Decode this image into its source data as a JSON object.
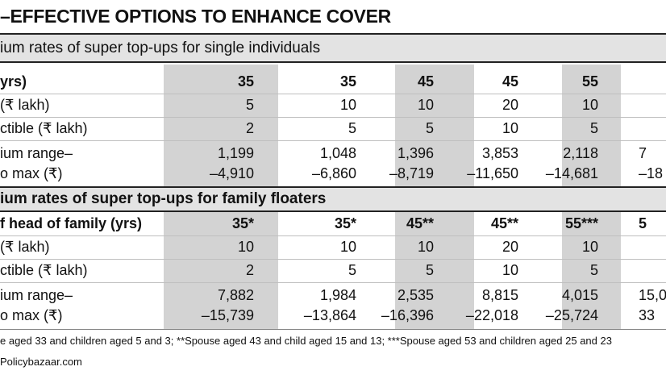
{
  "title": "–EFFECTIVE OPTIONS TO ENHANCE COVER",
  "section1": {
    "heading": "ium rates of super top-ups for single individuals",
    "rows": [
      {
        "label": "yrs)",
        "values": [
          "35",
          "35",
          "45",
          "45",
          "55",
          ""
        ]
      },
      {
        "label": "(₹ lakh)",
        "values": [
          "5",
          "10",
          "10",
          "20",
          "10",
          ""
        ]
      },
      {
        "label": "ctible (₹ lakh)",
        "values": [
          "2",
          "5",
          "5",
          "10",
          "5",
          ""
        ]
      },
      {
        "label": "ium range–",
        "values": [
          "1,199",
          "1,048",
          "1,396",
          "3,853",
          "2,118",
          "7"
        ]
      },
      {
        "label": "o max (₹)",
        "values": [
          "–4,910",
          "–6,860",
          "–8,719",
          "–11,650",
          "–14,681",
          "–18"
        ]
      }
    ]
  },
  "section2": {
    "heading": "ium rates of super top-ups for family floaters",
    "rows": [
      {
        "label": "f head of family (yrs)",
        "values": [
          "35*",
          "35*",
          "45**",
          "45**",
          "55***",
          "5"
        ]
      },
      {
        "label": "(₹ lakh)",
        "values": [
          "10",
          "10",
          "10",
          "20",
          "10",
          ""
        ]
      },
      {
        "label": "ctible (₹ lakh)",
        "values": [
          "2",
          "5",
          "5",
          "10",
          "5",
          ""
        ]
      },
      {
        "label": "ium range–",
        "values": [
          "7,882",
          "1,984",
          "2,535",
          "8,815",
          "4,015",
          "15,0"
        ]
      },
      {
        "label": "o max (₹)",
        "values": [
          "–15,739",
          "–13,864",
          "–16,396",
          "–22,018",
          "–25,724",
          "33"
        ]
      }
    ]
  },
  "footnote": "e aged 33 and children aged 5 and 3; **Spouse aged 43 and child aged 15 and 13; ***Spouse aged 53 and children aged 25 and 23",
  "source": "Policybazaar.com"
}
